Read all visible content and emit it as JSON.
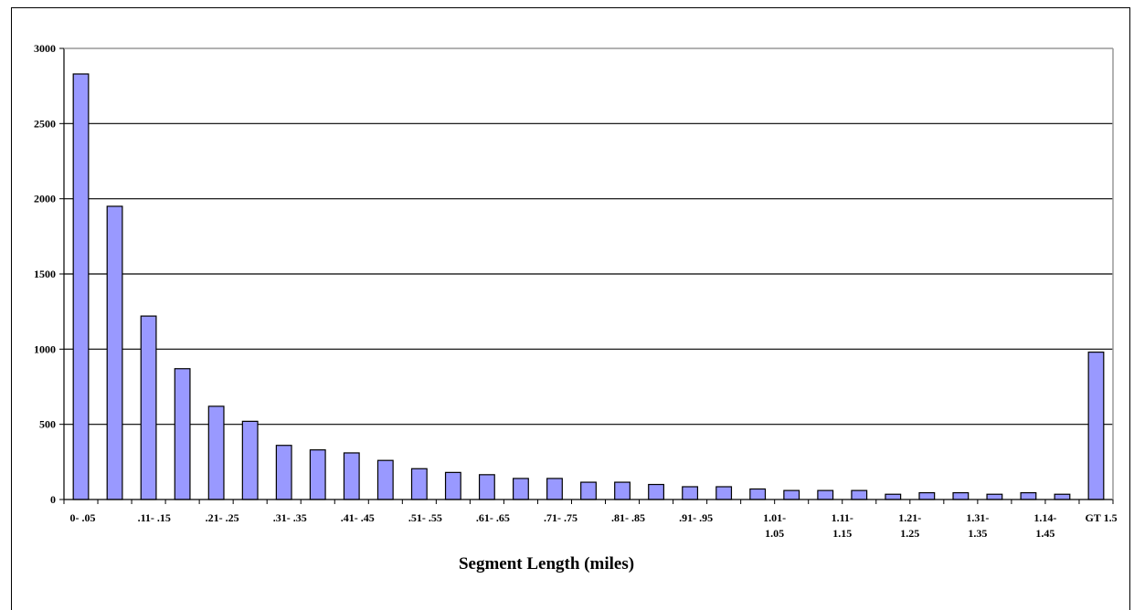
{
  "chart_data": {
    "type": "bar",
    "xlabel": "Segment Length (miles)",
    "ylabel": "",
    "ylim": [
      0,
      3000
    ],
    "yticks": [
      0,
      500,
      1000,
      1500,
      2000,
      2500,
      3000
    ],
    "grid": true,
    "legend": "none",
    "bar_color": "#9999ff",
    "categories": [
      "0-.05",
      "",
      ".11-.15",
      "",
      ".21-.25",
      "",
      ".31-.35",
      "",
      ".41-.45",
      "",
      ".51-.55",
      "",
      ".61-.65",
      "",
      ".71-.75",
      "",
      ".81-.85",
      "",
      ".91-.95",
      "",
      "1.01-1.05",
      "",
      "1.11-1.15",
      "",
      "1.21-1.25",
      "",
      "1.31-1.35",
      "",
      "1.14-1.45",
      "",
      "GT 1.5"
    ],
    "values": [
      2830,
      1950,
      1220,
      870,
      620,
      520,
      360,
      330,
      310,
      260,
      205,
      180,
      165,
      140,
      140,
      115,
      115,
      100,
      85,
      85,
      70,
      60,
      60,
      60,
      35,
      45,
      45,
      35,
      45,
      35,
      980
    ],
    "tick_labels": [
      {
        "index": 0,
        "lines": [
          "0-  .05"
        ]
      },
      {
        "index": 2,
        "lines": [
          ".11-  .15"
        ]
      },
      {
        "index": 4,
        "lines": [
          ".21-  .25"
        ]
      },
      {
        "index": 6,
        "lines": [
          ".31-  .35"
        ]
      },
      {
        "index": 8,
        "lines": [
          ".41-  .45"
        ]
      },
      {
        "index": 10,
        "lines": [
          ".51-  .55"
        ]
      },
      {
        "index": 12,
        "lines": [
          ".61-  .65"
        ]
      },
      {
        "index": 14,
        "lines": [
          ".71-  .75"
        ]
      },
      {
        "index": 16,
        "lines": [
          ".81-  .85"
        ]
      },
      {
        "index": 18,
        "lines": [
          ".91-  .95"
        ]
      },
      {
        "index": 20,
        "lines": [
          "1.01-",
          "1.05"
        ]
      },
      {
        "index": 22,
        "lines": [
          "1.11-",
          "1.15"
        ]
      },
      {
        "index": 24,
        "lines": [
          "1.21-",
          "1.25"
        ]
      },
      {
        "index": 26,
        "lines": [
          "1.31-",
          "1.35"
        ]
      },
      {
        "index": 28,
        "lines": [
          "1.14-",
          "1.45"
        ]
      },
      {
        "index": 30,
        "lines": [
          "GT 1.5"
        ]
      }
    ]
  }
}
